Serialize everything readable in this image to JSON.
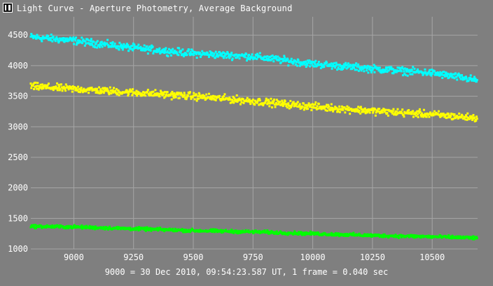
{
  "window": {
    "title": "Light Curve - Aperture Photometry, Average Background",
    "icon": "app-logo-icon"
  },
  "footer": {
    "caption": "9000 = 30 Dec 2010, 09:54:23.587 UT, 1 frame = 0.040 sec"
  },
  "chart_data": {
    "type": "scatter",
    "title": "Light Curve - Aperture Photometry, Average Background",
    "xlabel": "",
    "ylabel": "",
    "xlim": [
      8820,
      10690
    ],
    "ylim": [
      1000,
      4800
    ],
    "x_ticks": [
      9000,
      9250,
      9500,
      9750,
      10000,
      10250,
      10500
    ],
    "y_ticks": [
      1000,
      1500,
      2000,
      2500,
      3000,
      3500,
      4000,
      4500
    ],
    "grid": true,
    "legend": "none",
    "series": [
      {
        "color": "#00ffff",
        "x": [
          8820,
          9000,
          9250,
          9500,
          9750,
          10000,
          10250,
          10500,
          10690
        ],
        "y": [
          4470,
          4410,
          4290,
          4200,
          4150,
          4030,
          3950,
          3880,
          3760
        ],
        "scatter_amplitude": 45
      },
      {
        "color": "#ffff00",
        "x": [
          8820,
          9000,
          9250,
          9500,
          9750,
          10000,
          10250,
          10500,
          10690
        ],
        "y": [
          3660,
          3620,
          3560,
          3500,
          3420,
          3330,
          3260,
          3200,
          3140
        ],
        "scatter_amplitude": 45
      },
      {
        "color": "#00ff00",
        "x": [
          8820,
          9000,
          9250,
          9500,
          9750,
          10000,
          10250,
          10500,
          10690
        ],
        "y": [
          1370,
          1360,
          1330,
          1300,
          1280,
          1250,
          1220,
          1200,
          1180
        ],
        "scatter_amplitude": 20
      }
    ]
  }
}
